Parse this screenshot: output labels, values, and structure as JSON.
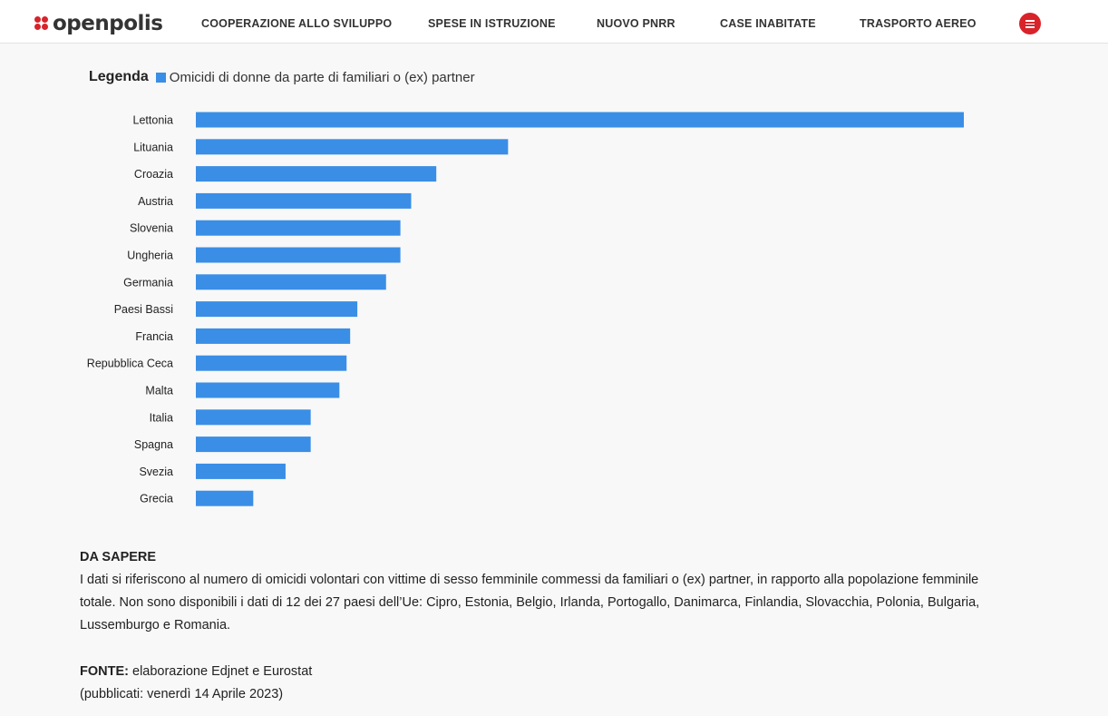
{
  "header": {
    "logo_text": "openpolis",
    "nav": [
      "COOPERAZIONE ALLO SVILUPPO",
      "SPESE IN ISTRUZIONE",
      "NUOVO PNRR",
      "CASE INABITATE",
      "TRASPORTO AEREO"
    ],
    "menu_icon": "hamburger-menu-icon"
  },
  "colors": {
    "accent": "#d8232a",
    "bar": "#3a8ee6"
  },
  "legend": {
    "title": "Legenda",
    "label": "Omicidi di donne da parte di familiari o (ex) partner"
  },
  "chart_data": {
    "type": "bar",
    "orientation": "horizontal",
    "title": "",
    "xlabel": "",
    "ylabel": "",
    "series": [
      {
        "name": "Omicidi di donne da parte di familiari o (ex) partner",
        "values": [
          2.14,
          0.87,
          0.67,
          0.6,
          0.57,
          0.57,
          0.53,
          0.45,
          0.43,
          0.42,
          0.4,
          0.32,
          0.32,
          0.25,
          0.16
        ]
      }
    ],
    "categories": [
      "Lettonia",
      "Lituania",
      "Croazia",
      "Austria",
      "Slovenia",
      "Ungheria",
      "Germania",
      "Paesi Bassi",
      "Francia",
      "Repubblica Ceca",
      "Malta",
      "Italia",
      "Spagna",
      "Svezia",
      "Grecia"
    ],
    "xlim": [
      0,
      2.14
    ],
    "grid": false,
    "legend_position": "top-left"
  },
  "note": {
    "heading": "DA SAPERE",
    "text": "I dati si riferiscono al numero di omicidi volontari con vittime di sesso femminile commessi da familiari o (ex) partner, in rapporto alla popolazione femminile totale. Non sono disponibili i dati di 12 dei 27 paesi dell’Ue: Cipro, Estonia, Belgio, Irlanda, Portogallo, Danimarca, Finlandia, Slovacchia, Polonia, Bulgaria, Lussemburgo e Romania."
  },
  "source": {
    "label": "FONTE:",
    "text": "elaborazione Edjnet e Eurostat",
    "published": "(pubblicati: venerdì 14 Aprile 2023)"
  }
}
